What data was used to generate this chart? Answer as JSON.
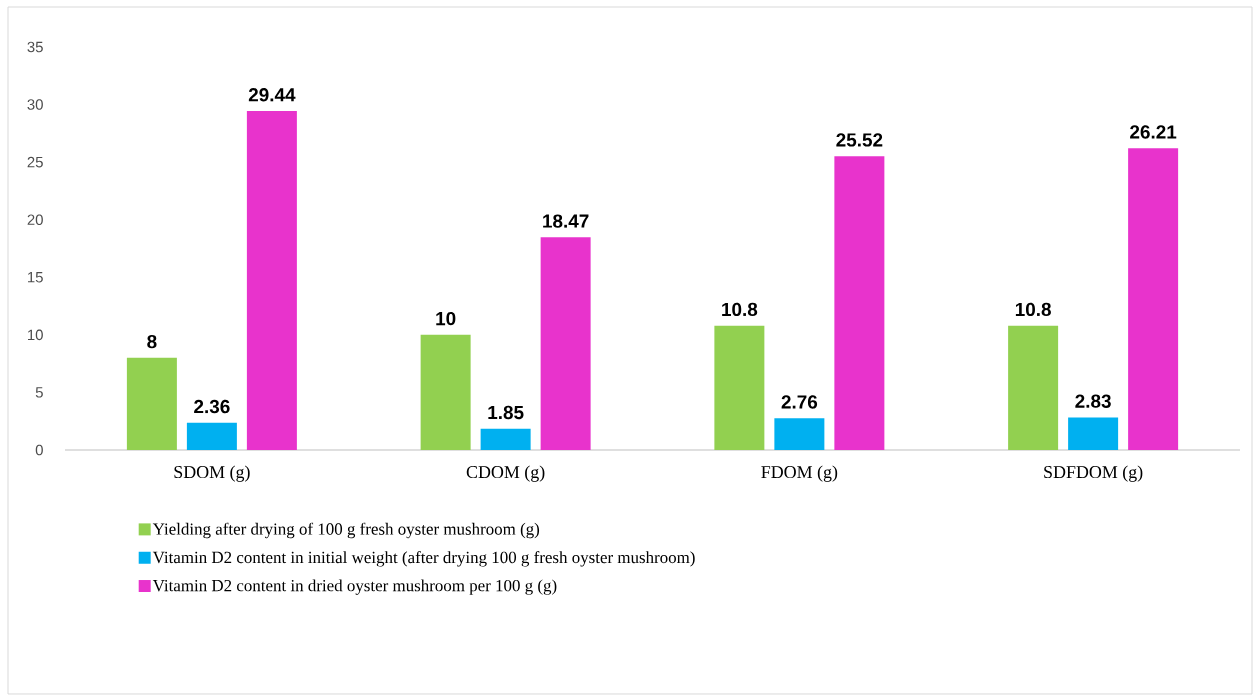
{
  "chart_data": {
    "type": "bar",
    "categories": [
      "SDOM (g)",
      "CDOM (g)",
      "FDOM (g)",
      "SDFDOM (g)"
    ],
    "series": [
      {
        "name": "Yielding after drying of 100 g fresh oyster mushroom (g)",
        "color": "#92d050",
        "values": [
          8,
          10,
          10.8,
          10.8
        ]
      },
      {
        "name": "Vitamin D2 content in initial weight (after drying 100 g fresh oyster mushroom)",
        "color": "#00b0f0",
        "values": [
          2.36,
          1.85,
          2.76,
          2.83
        ]
      },
      {
        "name": "Vitamin D2 content in dried oyster mushroom per 100 g (g)",
        "color": "#e833cc",
        "values": [
          29.44,
          18.47,
          25.52,
          26.21
        ]
      }
    ],
    "ylim": [
      0,
      35
    ],
    "yticks": [
      0,
      5,
      10,
      15,
      20,
      25,
      30,
      35
    ],
    "grid": false,
    "legend": "bottom",
    "data_labels": true
  }
}
